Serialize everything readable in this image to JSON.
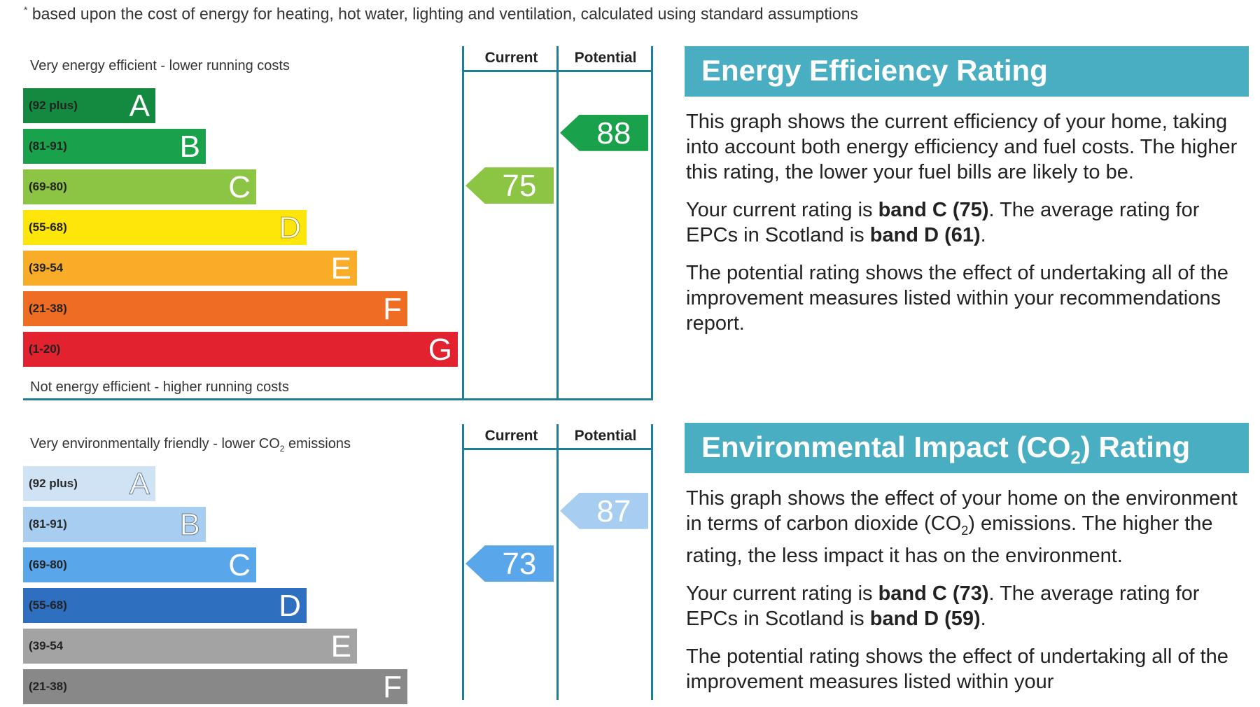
{
  "footnote": "based upon the cost of energy for heating, hot water, lighting and ventilation, calculated using standard assumptions",
  "footnote_mark": "*",
  "energy_chart": {
    "top_caption": "Very energy efficient - lower running costs",
    "bottom_caption": "Not energy efficient - higher running costs",
    "col_current": "Current",
    "col_potential": "Potential",
    "bands": [
      {
        "letter": "A",
        "range": "(92 plus)",
        "color": "#138a3f"
      },
      {
        "letter": "B",
        "range": "(81-91)",
        "color": "#1aa14b"
      },
      {
        "letter": "C",
        "range": "(69-80)",
        "color": "#8cc443"
      },
      {
        "letter": "D",
        "range": "(55-68)",
        "color": "#ffe60a"
      },
      {
        "letter": "E",
        "range": "(39-54",
        "color": "#f8ac27"
      },
      {
        "letter": "F",
        "range": "(21-38)",
        "color": "#ef6c23"
      },
      {
        "letter": "G",
        "range": "(1-20)",
        "color": "#e2222e"
      }
    ],
    "current": {
      "value": "75",
      "color": "#8cc443"
    },
    "potential": {
      "value": "88",
      "color": "#1aa14b"
    }
  },
  "energy_panel": {
    "title": "Energy Efficiency Rating",
    "p1": "This graph shows the current efficiency of your home, taking into account both energy efficiency and fuel costs. The higher this rating, the lower your fuel bills are likely to be.",
    "p2_pre": "Your current rating is ",
    "p2_band1": "band C (75)",
    "p2_mid": ". The average rating for EPCs in Scotland is ",
    "p2_band2": "band D (61)",
    "p2_post": ".",
    "p3": "The potential rating shows the effect of undertaking all of the improvement measures listed within your recommendations report."
  },
  "env_chart": {
    "top_caption_pre": "Very environmentally friendly - lower CO",
    "top_caption_sub": "2",
    "top_caption_post": " emissions",
    "col_current": "Current",
    "col_potential": "Potential",
    "bands": [
      {
        "letter": "A",
        "range": "(92 plus)",
        "color": "#cfe3f5"
      },
      {
        "letter": "B",
        "range": "(81-91)",
        "color": "#a7cdf0"
      },
      {
        "letter": "C",
        "range": "(69-80)",
        "color": "#59a6ea"
      },
      {
        "letter": "D",
        "range": "(55-68)",
        "color": "#2f6fc0"
      },
      {
        "letter": "E",
        "range": "(39-54",
        "color": "#a3a3a3"
      },
      {
        "letter": "F",
        "range": "(21-38)",
        "color": "#888888"
      }
    ],
    "current": {
      "value": "73",
      "color": "#59a6ea"
    },
    "potential": {
      "value": "87",
      "color": "#a7cdf0"
    }
  },
  "env_panel": {
    "title_pre": "Environmental Impact (CO",
    "title_sub": "2",
    "title_post": ") Rating",
    "p1_pre": "This graph shows the effect of your home on the environment in terms of carbon dioxide (CO",
    "p1_sub": "2",
    "p1_post": ") emissions. The higher the rating, the less impact it has on the environment.",
    "p2_pre": "Your current rating is ",
    "p2_band1": "band C (73)",
    "p2_mid": ". The average rating for EPCs in Scotland is ",
    "p2_band2": "band D (59)",
    "p2_post": ".",
    "p3": "The potential rating shows the effect of undertaking all of the improvement measures listed within your"
  }
}
